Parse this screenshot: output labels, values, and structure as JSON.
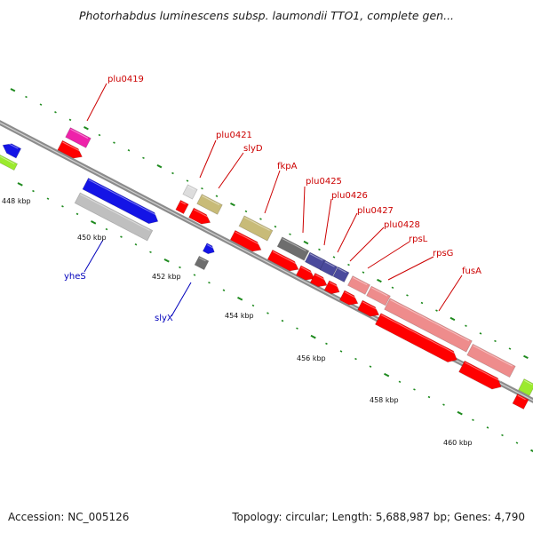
{
  "title": "Photorhabdus luminescens subsp. laumondii TTO1, complete gen...",
  "footer": {
    "accession": "Accession: NC_005126",
    "topology": "Topology: circular; Length: 5,688,987 bp; Genes: 4,790"
  },
  "colors": {
    "backbone": "#8c8c8c",
    "tick": "#1e8a1e",
    "label_forward": "#cc0000",
    "label_reverse": "#0000bb",
    "cds": "#ff0000",
    "gene_gray": "#bfbfbf",
    "gene_blue": "#1414e6",
    "gene_magenta": "#ee22aa",
    "gene_khaki": "#c8bb78",
    "gene_darkgray": "#6e6e6e",
    "gene_navy": "#4a4a9c",
    "gene_pink": "#ee8c8c",
    "gene_lime": "#9bea2e"
  },
  "kbp_ticks": [
    "448 kbp",
    "450 kbp",
    "452 kbp",
    "454 kbp",
    "456 kbp",
    "458 kbp",
    "460 kbp"
  ],
  "gene_labels": [
    {
      "id": "plu0419",
      "text": "plu0419",
      "strand": "forward"
    },
    {
      "id": "plu0421",
      "text": "plu0421",
      "strand": "forward"
    },
    {
      "id": "slyd",
      "text": "slyD",
      "strand": "forward"
    },
    {
      "id": "fkpa",
      "text": "fkpA",
      "strand": "forward"
    },
    {
      "id": "plu0425",
      "text": "plu0425",
      "strand": "forward"
    },
    {
      "id": "plu0426",
      "text": "plu0426",
      "strand": "forward"
    },
    {
      "id": "plu0427",
      "text": "plu0427",
      "strand": "forward"
    },
    {
      "id": "plu0428",
      "text": "plu0428",
      "strand": "forward"
    },
    {
      "id": "rpsl",
      "text": "rpsL",
      "strand": "forward"
    },
    {
      "id": "rpsg",
      "text": "rpsG",
      "strand": "forward"
    },
    {
      "id": "fusa",
      "text": "fusA",
      "strand": "forward"
    },
    {
      "id": "yhes",
      "text": "yheS",
      "strand": "reverse"
    },
    {
      "id": "slyx",
      "text": "slyX",
      "strand": "reverse"
    }
  ]
}
